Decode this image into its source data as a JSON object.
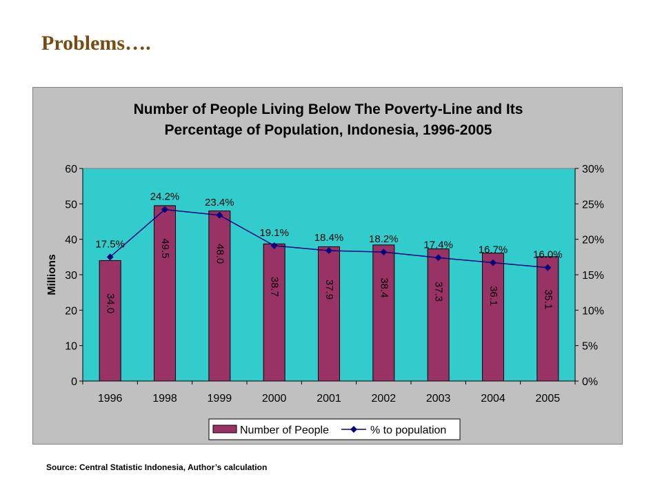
{
  "page": {
    "heading": "Problems….",
    "source": "Source: Central  Statistic Indonesia, Author’s calculation"
  },
  "colors": {
    "heading": "#7a4a10",
    "plot_bg": "#33cccc",
    "chart_bg": "#c0c0c0",
    "bar": "#993366",
    "line": "#000080"
  },
  "chart_data": {
    "type": "bar",
    "title_lines": [
      "Number of People Living Below The Poverty-Line and Its",
      "Percentage of Population, Indonesia, 1996-2005"
    ],
    "categories": [
      "1996",
      "1998",
      "1999",
      "2000",
      "2001",
      "2002",
      "2003",
      "2004",
      "2005"
    ],
    "series": [
      {
        "name": "Number of People",
        "type": "bar",
        "axis": "left",
        "values": [
          34.0,
          49.5,
          48.0,
          38.7,
          37.9,
          38.4,
          37.3,
          36.1,
          35.1
        ],
        "labels": [
          "34.0",
          "49.5",
          "48.0",
          "38.7",
          "37.9",
          "38.4",
          "37.3",
          "36.1",
          "35.1"
        ]
      },
      {
        "name": "% to population",
        "type": "line",
        "axis": "right",
        "values": [
          17.5,
          24.2,
          23.4,
          19.1,
          18.4,
          18.2,
          17.4,
          16.7,
          16.0
        ],
        "labels": [
          "17.5%",
          "24.2%",
          "23.4%",
          "19.1%",
          "18.4%",
          "18.2%",
          "17.4%",
          "16.7%",
          "16.0%"
        ]
      }
    ],
    "y_left": {
      "label": "Millions",
      "range": [
        0,
        60
      ],
      "ticks": [
        "0",
        "10",
        "20",
        "30",
        "40",
        "50",
        "60"
      ]
    },
    "y_right": {
      "range": [
        0,
        30
      ],
      "ticks": [
        "0%",
        "5%",
        "10%",
        "15%",
        "20%",
        "25%",
        "30%"
      ]
    },
    "grid": false,
    "legend_position": "bottom"
  }
}
